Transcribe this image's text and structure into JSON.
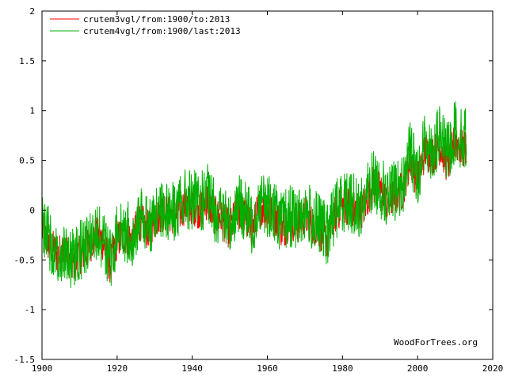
{
  "chart_data": {
    "type": "line",
    "title": "",
    "xlabel": "",
    "ylabel": "",
    "xlim": [
      1900,
      2020
    ],
    "ylim": [
      -1.5,
      2
    ],
    "xticks": [
      1900,
      1920,
      1940,
      1960,
      1980,
      2000,
      2020
    ],
    "yticks": [
      -1.5,
      -1,
      -0.5,
      0,
      0.5,
      1,
      1.5,
      2
    ],
    "xtick_labels": [
      "1900",
      "1920",
      "1940",
      "1960",
      "1980",
      "2000",
      "2020"
    ],
    "ytick_labels": [
      "-1.5",
      "-1",
      "-0.5",
      "0",
      "0.5",
      "1",
      "1.5",
      "2"
    ],
    "legend_position": "top-left",
    "credit": "WoodForTrees.org",
    "series": [
      {
        "name": "crutem3vgl/from:1900/to:2013",
        "color": "#ff0000",
        "x": [
          1900,
          1902,
          1904,
          1906,
          1908,
          1910,
          1912,
          1914,
          1916,
          1918,
          1920,
          1922,
          1924,
          1926,
          1928,
          1930,
          1932,
          1934,
          1936,
          1938,
          1940,
          1942,
          1944,
          1946,
          1948,
          1950,
          1952,
          1954,
          1956,
          1958,
          1960,
          1962,
          1964,
          1966,
          1968,
          1970,
          1972,
          1974,
          1976,
          1978,
          1980,
          1982,
          1984,
          1986,
          1988,
          1990,
          1992,
          1994,
          1996,
          1998,
          2000,
          2002,
          2004,
          2006,
          2008,
          2010,
          2012,
          2013
        ],
        "values": [
          -0.2,
          -0.35,
          -0.45,
          -0.4,
          -0.55,
          -0.45,
          -0.4,
          -0.25,
          -0.3,
          -0.55,
          -0.3,
          -0.25,
          -0.3,
          -0.1,
          -0.2,
          -0.1,
          0.0,
          -0.05,
          -0.05,
          0.05,
          0.05,
          0.0,
          0.1,
          -0.05,
          -0.1,
          -0.2,
          0.0,
          -0.05,
          -0.2,
          0.05,
          0.0,
          -0.05,
          -0.2,
          -0.1,
          -0.15,
          -0.05,
          -0.15,
          -0.2,
          -0.3,
          -0.05,
          0.05,
          0.05,
          -0.05,
          0.05,
          0.25,
          0.2,
          0.05,
          0.15,
          0.2,
          0.5,
          0.3,
          0.6,
          0.55,
          0.65,
          0.45,
          0.7,
          0.6,
          0.65
        ]
      },
      {
        "name": "crutem4vgl/from:1900/last:2013",
        "color": "#00b000",
        "x": [
          1900,
          1902,
          1904,
          1906,
          1908,
          1910,
          1912,
          1914,
          1916,
          1918,
          1920,
          1922,
          1924,
          1926,
          1928,
          1930,
          1932,
          1934,
          1936,
          1938,
          1940,
          1942,
          1944,
          1946,
          1948,
          1950,
          1952,
          1954,
          1956,
          1958,
          1960,
          1962,
          1964,
          1966,
          1968,
          1970,
          1972,
          1974,
          1976,
          1978,
          1980,
          1982,
          1984,
          1986,
          1988,
          1990,
          1992,
          1994,
          1996,
          1998,
          2000,
          2002,
          2004,
          2006,
          2008,
          2010,
          2012,
          2013
        ],
        "values": [
          -0.15,
          -0.3,
          -0.45,
          -0.4,
          -0.5,
          -0.4,
          -0.35,
          -0.2,
          -0.3,
          -0.5,
          -0.25,
          -0.2,
          -0.25,
          -0.05,
          -0.15,
          -0.05,
          0.05,
          0.0,
          0.0,
          0.1,
          0.1,
          0.05,
          0.15,
          0.0,
          -0.05,
          -0.15,
          0.05,
          0.0,
          -0.15,
          0.1,
          0.05,
          0.0,
          -0.15,
          -0.05,
          -0.1,
          0.0,
          -0.1,
          -0.15,
          -0.25,
          0.0,
          0.1,
          0.1,
          0.0,
          0.1,
          0.3,
          0.25,
          0.1,
          0.2,
          0.25,
          0.6,
          0.35,
          0.7,
          0.6,
          0.75,
          0.55,
          0.8,
          0.7,
          0.75
        ]
      }
    ]
  }
}
